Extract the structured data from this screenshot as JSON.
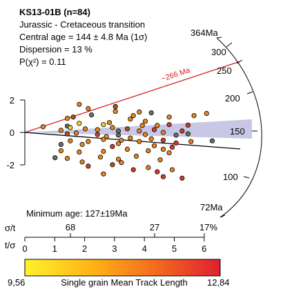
{
  "chart_data": {
    "type": "scatter",
    "subtype": "radial-plot",
    "title": "KS13-01B (n=84)",
    "info_lines": [
      "Jurassic - Cretaceous transition",
      "Central age = 144 ± 4.8 Ma (1σ)",
      "Dispersion = 13 %",
      "P(χ²) = 0.11"
    ],
    "y_axis": {
      "ticks": [
        "2",
        "0",
        "-2"
      ],
      "values": [
        2,
        0,
        -2
      ]
    },
    "age_scale": {
      "end_max_label": "364Ma",
      "end_min_label": "72Ma",
      "tick_labels": [
        "300",
        "250",
        "200",
        "150",
        "100"
      ],
      "tick_values": [
        300,
        250,
        200,
        150,
        100
      ]
    },
    "reference_line": {
      "label": "~266 Ma",
      "color": "#d42020"
    },
    "central_age_line_color": "#000000",
    "band_color": "#c8c8e6",
    "minimum_age_label": "Minimum age: 127±19Ma",
    "sigma_axis": {
      "label": "σ/t",
      "tick_labels": [
        "68",
        "27",
        "17%"
      ]
    },
    "precision_axis": {
      "label": "t/σ",
      "tick_labels": [
        "0",
        "1",
        "2",
        "3",
        "4",
        "5",
        "6"
      ],
      "range": [
        0,
        6
      ]
    },
    "colorbar": {
      "min_label": "9,56",
      "max_label": "12,84",
      "caption": "Single grain Mean Track Length",
      "colors": [
        "#fff22a",
        "#ffb216",
        "#f26420",
        "#e02030"
      ]
    },
    "grain_colors": {
      "orange": "#e8851e",
      "yellow": "#f5d030",
      "red": "#d83a2a",
      "gray": "#6c6c6c",
      "brown": "#b25418"
    },
    "points": [
      {
        "x": 1.82,
        "y": 1.73,
        "c": "orange"
      },
      {
        "x": 2.12,
        "y": 1.47,
        "c": "orange"
      },
      {
        "x": 3.03,
        "y": 1.6,
        "c": "brown"
      },
      {
        "x": 3.83,
        "y": 1.26,
        "c": "orange"
      },
      {
        "x": 4.23,
        "y": 1.21,
        "c": "gray"
      },
      {
        "x": 6.08,
        "y": 1.17,
        "c": "orange"
      },
      {
        "x": 3.03,
        "y": 1.3,
        "c": "orange"
      },
      {
        "x": 3.63,
        "y": 1.04,
        "c": "orange"
      },
      {
        "x": 1.42,
        "y": 0.87,
        "c": "orange"
      },
      {
        "x": 1.62,
        "y": 0.95,
        "c": "brown"
      },
      {
        "x": 2.83,
        "y": 0.61,
        "c": "orange"
      },
      {
        "x": 4.03,
        "y": 0.69,
        "c": "orange"
      },
      {
        "x": 4.83,
        "y": 0.95,
        "c": "orange"
      },
      {
        "x": 3.53,
        "y": 0.82,
        "c": "orange"
      },
      {
        "x": 0.61,
        "y": 0.35,
        "c": "orange"
      },
      {
        "x": 1.42,
        "y": 0.39,
        "c": "gray"
      },
      {
        "x": 1.82,
        "y": 0.56,
        "c": "yellow"
      },
      {
        "x": 2.63,
        "y": 0.48,
        "c": "yellow"
      },
      {
        "x": 2.93,
        "y": 0.3,
        "c": "orange"
      },
      {
        "x": 3.43,
        "y": 0.22,
        "c": "brown"
      },
      {
        "x": 3.93,
        "y": 0.43,
        "c": "orange"
      },
      {
        "x": 4.43,
        "y": 0.43,
        "c": "orange"
      },
      {
        "x": 4.83,
        "y": 0.48,
        "c": "red"
      },
      {
        "x": 5.46,
        "y": 0.45,
        "c": "red"
      },
      {
        "x": 1.21,
        "y": 0.13,
        "c": "orange"
      },
      {
        "x": 1.52,
        "y": 0.3,
        "c": "yellow"
      },
      {
        "x": 2.02,
        "y": 0.22,
        "c": "orange"
      },
      {
        "x": 2.43,
        "y": 0.17,
        "c": "orange"
      },
      {
        "x": 3.13,
        "y": 0.09,
        "c": "gray"
      },
      {
        "x": 3.83,
        "y": 0.09,
        "c": "orange"
      },
      {
        "x": 4.33,
        "y": 0.17,
        "c": "red"
      },
      {
        "x": 4.63,
        "y": 0.0,
        "c": "orange"
      },
      {
        "x": 5.26,
        "y": 0.09,
        "c": "red"
      },
      {
        "x": 1.42,
        "y": -0.09,
        "c": "brown"
      },
      {
        "x": 1.72,
        "y": -0.04,
        "c": "orange"
      },
      {
        "x": 2.43,
        "y": -0.13,
        "c": "red"
      },
      {
        "x": 2.73,
        "y": -0.26,
        "c": "orange"
      },
      {
        "x": 3.13,
        "y": -0.17,
        "c": "gray"
      },
      {
        "x": 4.03,
        "y": -0.13,
        "c": "orange"
      },
      {
        "x": 5.06,
        "y": -0.17,
        "c": "gray"
      },
      {
        "x": 5.46,
        "y": -0.09,
        "c": "gray"
      },
      {
        "x": 3.53,
        "y": -0.35,
        "c": "orange"
      },
      {
        "x": 4.23,
        "y": -0.39,
        "c": "orange"
      },
      {
        "x": 4.63,
        "y": -0.48,
        "c": "red"
      },
      {
        "x": 5.06,
        "y": -0.65,
        "c": "red"
      },
      {
        "x": 5.56,
        "y": -0.56,
        "c": "orange"
      },
      {
        "x": 1.52,
        "y": -0.52,
        "c": "orange"
      },
      {
        "x": 2.12,
        "y": -0.56,
        "c": "orange"
      },
      {
        "x": 2.63,
        "y": -0.43,
        "c": "orange"
      },
      {
        "x": 3.23,
        "y": -0.48,
        "c": "orange"
      },
      {
        "x": 3.83,
        "y": -0.56,
        "c": "orange"
      },
      {
        "x": 6.27,
        "y": -0.52,
        "c": "gray"
      },
      {
        "x": 1.21,
        "y": -0.74,
        "c": "gray"
      },
      {
        "x": 1.92,
        "y": -0.74,
        "c": "orange"
      },
      {
        "x": 2.93,
        "y": -0.87,
        "c": "red"
      },
      {
        "x": 4.33,
        "y": -0.82,
        "c": "orange"
      },
      {
        "x": 4.93,
        "y": -0.91,
        "c": "red"
      },
      {
        "x": 1.21,
        "y": -1.13,
        "c": "orange"
      },
      {
        "x": 1.82,
        "y": -1.21,
        "c": "orange"
      },
      {
        "x": 2.63,
        "y": -1.17,
        "c": "orange"
      },
      {
        "x": 3.43,
        "y": -1.04,
        "c": "orange"
      },
      {
        "x": 4.13,
        "y": -1.13,
        "c": "orange"
      },
      {
        "x": 4.83,
        "y": -1.26,
        "c": "orange"
      },
      {
        "x": 1.01,
        "y": -1.56,
        "c": "gray"
      },
      {
        "x": 1.42,
        "y": -1.6,
        "c": "orange"
      },
      {
        "x": 2.53,
        "y": -1.52,
        "c": "orange"
      },
      {
        "x": 3.73,
        "y": -1.47,
        "c": "orange"
      },
      {
        "x": 4.53,
        "y": -1.69,
        "c": "orange"
      },
      {
        "x": 3.13,
        "y": -1.65,
        "c": "orange"
      },
      {
        "x": 3.23,
        "y": -1.86,
        "c": "orange"
      },
      {
        "x": 1.92,
        "y": -1.82,
        "c": "orange"
      },
      {
        "x": 2.12,
        "y": -2.08,
        "c": "red"
      },
      {
        "x": 2.93,
        "y": -1.99,
        "c": "brown"
      },
      {
        "x": 3.63,
        "y": -2.3,
        "c": "red"
      },
      {
        "x": 4.13,
        "y": -2.17,
        "c": "orange"
      },
      {
        "x": 4.43,
        "y": -2.43,
        "c": "red"
      },
      {
        "x": 4.93,
        "y": -2.3,
        "c": "orange"
      },
      {
        "x": 2.63,
        "y": -2.56,
        "c": "orange"
      },
      {
        "x": 4.63,
        "y": -2.73,
        "c": "red"
      },
      {
        "x": 5.26,
        "y": -2.82,
        "c": "red"
      },
      {
        "x": 2.23,
        "y": 1.08,
        "c": "gray"
      },
      {
        "x": 5.66,
        "y": 1.04,
        "c": "orange"
      },
      {
        "x": 3.13,
        "y": -0.69,
        "c": "orange"
      },
      {
        "x": 4.63,
        "y": -1.04,
        "c": "orange"
      }
    ]
  }
}
